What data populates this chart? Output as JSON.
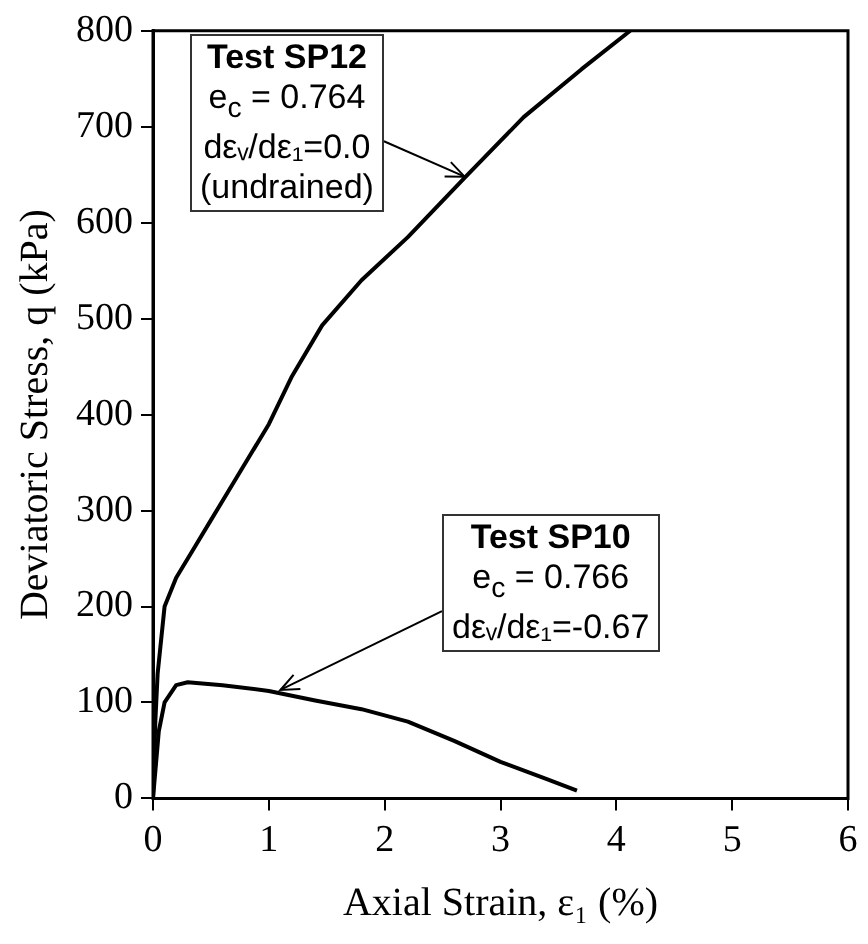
{
  "chart_data": {
    "type": "line",
    "xlabel": "Axial Strain, ε₁ (%)",
    "ylabel": "Deviatoric Stress, q (kPa)",
    "xlim": [
      0,
      6
    ],
    "xticks": [
      0,
      1,
      2,
      3,
      4,
      5,
      6
    ],
    "ylim": [
      0,
      800
    ],
    "yticks": [
      0,
      100,
      200,
      300,
      400,
      500,
      600,
      700,
      800
    ],
    "grid": false,
    "legend": false,
    "marker": "none",
    "line_style": "solid",
    "series": [
      {
        "color": "#000000",
        "x": [
          0,
          0.02,
          0.04,
          0.1,
          0.2,
          0.35,
          0.5,
          0.7,
          1.0,
          1.2,
          1.46,
          1.8,
          2.2,
          2.7,
          3.2,
          3.7,
          4.12
        ],
        "values": [
          0,
          80,
          130,
          200,
          230,
          260,
          290,
          330,
          390,
          440,
          493,
          540,
          585,
          648,
          710,
          760,
          800
        ]
      },
      {
        "color": "#000000",
        "x": [
          0,
          0.05,
          0.1,
          0.2,
          0.3,
          0.6,
          1.0,
          1.4,
          1.8,
          2.2,
          2.6,
          3.0,
          3.4,
          3.66
        ],
        "values": [
          0,
          70,
          100,
          118,
          121,
          118,
          112,
          102,
          93,
          80,
          60,
          38,
          20,
          8
        ]
      }
    ],
    "annotations": [
      {
        "text": "Test SP12\ne$_{c}$ = 0.764\ndεᵥ/dε₁=0.0\n(undrained)",
        "x": 2.69,
        "y": 648
      },
      {
        "text": "Test SP10\ne$_{c}$ = 0.766\ndεᵥ/dε₁=-0.67",
        "x": 1.1,
        "y": 113
      }
    ]
  }
}
